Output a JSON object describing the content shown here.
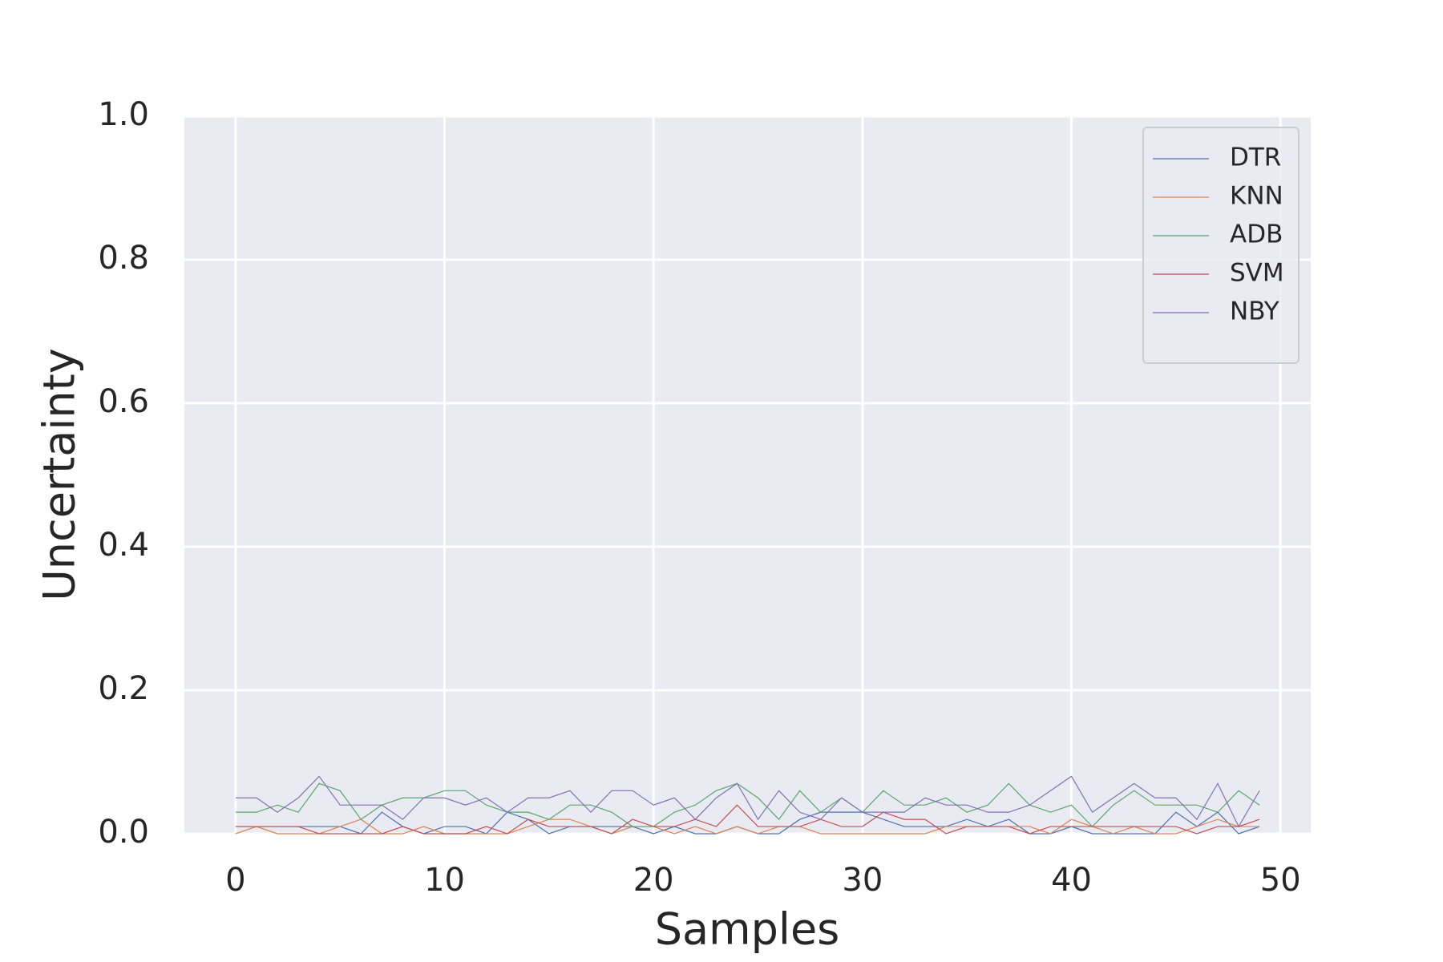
{
  "chart_data": {
    "type": "line",
    "xlabel": "Samples",
    "ylabel": "Uncertainty",
    "x": [
      0,
      1,
      2,
      3,
      4,
      5,
      6,
      7,
      8,
      9,
      10,
      11,
      12,
      13,
      14,
      15,
      16,
      17,
      18,
      19,
      20,
      21,
      22,
      23,
      24,
      25,
      26,
      27,
      28,
      29,
      30,
      31,
      32,
      33,
      34,
      35,
      36,
      37,
      38,
      39,
      40,
      41,
      42,
      43,
      44,
      45,
      46,
      47,
      48,
      49
    ],
    "series": [
      {
        "name": "DTR",
        "color": "#4c72b0",
        "values": [
          0.01,
          0.01,
          0.01,
          0.01,
          0.01,
          0.01,
          0,
          0.03,
          0.01,
          0,
          0.01,
          0.01,
          0,
          0.03,
          0.02,
          0,
          0.01,
          0.01,
          0.01,
          0.01,
          0,
          0.01,
          0,
          0,
          0.01,
          0,
          0,
          0.02,
          0.03,
          0.03,
          0.03,
          0.02,
          0.01,
          0.01,
          0.01,
          0.02,
          0.01,
          0.02,
          0,
          0,
          0.01,
          0,
          0,
          0,
          0,
          0.03,
          0.01,
          0.03,
          0,
          0.01
        ]
      },
      {
        "name": "KNN",
        "color": "#dd8452",
        "values": [
          0,
          0.01,
          0,
          0,
          0,
          0.01,
          0.02,
          0,
          0,
          0.01,
          0,
          0,
          0,
          0,
          0.01,
          0.02,
          0.02,
          0.01,
          0,
          0.01,
          0.01,
          0,
          0.01,
          0,
          0.01,
          0,
          0.01,
          0.01,
          0,
          0,
          0,
          0,
          0,
          0,
          0.01,
          0.01,
          0.01,
          0.01,
          0.01,
          0,
          0.02,
          0.01,
          0,
          0.01,
          0,
          0,
          0.01,
          0.02,
          0.01,
          0.01
        ]
      },
      {
        "name": "ADB",
        "color": "#55a868",
        "values": [
          0.03,
          0.03,
          0.04,
          0.03,
          0.07,
          0.06,
          0.02,
          0.04,
          0.05,
          0.05,
          0.06,
          0.06,
          0.04,
          0.03,
          0.03,
          0.02,
          0.04,
          0.04,
          0.03,
          0.01,
          0.01,
          0.03,
          0.04,
          0.06,
          0.07,
          0.05,
          0.02,
          0.06,
          0.03,
          0.05,
          0.03,
          0.06,
          0.04,
          0.04,
          0.05,
          0.03,
          0.04,
          0.07,
          0.04,
          0.03,
          0.04,
          0.01,
          0.04,
          0.06,
          0.04,
          0.04,
          0.04,
          0.03,
          0.06,
          0.04
        ]
      },
      {
        "name": "SVM",
        "color": "#c44e52",
        "values": [
          0.01,
          0.01,
          0.01,
          0.01,
          0,
          0,
          0,
          0,
          0.01,
          0,
          0,
          0,
          0.01,
          0,
          0.02,
          0.01,
          0.01,
          0.01,
          0,
          0.02,
          0.01,
          0.01,
          0.02,
          0.01,
          0.04,
          0.01,
          0.01,
          0.01,
          0.02,
          0.01,
          0.01,
          0.03,
          0.02,
          0.02,
          0,
          0.01,
          0.01,
          0.01,
          0,
          0.01,
          0.01,
          0.01,
          0.01,
          0.01,
          0.01,
          0.01,
          0,
          0.01,
          0.01,
          0.02
        ]
      },
      {
        "name": "NBY",
        "color": "#8172b3",
        "values": [
          0.05,
          0.05,
          0.03,
          0.05,
          0.08,
          0.04,
          0.04,
          0.04,
          0.02,
          0.05,
          0.05,
          0.04,
          0.05,
          0.03,
          0.05,
          0.05,
          0.06,
          0.03,
          0.06,
          0.06,
          0.04,
          0.05,
          0.02,
          0.05,
          0.07,
          0.02,
          0.06,
          0.03,
          0.02,
          0.05,
          0.03,
          0.03,
          0.03,
          0.05,
          0.04,
          0.04,
          0.03,
          0.03,
          0.04,
          0.06,
          0.08,
          0.03,
          0.05,
          0.07,
          0.05,
          0.05,
          0.02,
          0.07,
          0.01,
          0.06
        ]
      }
    ],
    "xlim": [
      -2.45,
      51.45
    ],
    "ylim": [
      0,
      1
    ],
    "xticks": [
      0,
      10,
      20,
      30,
      40,
      50
    ],
    "yticks": [
      {
        "value": 0,
        "label": "0.0"
      },
      {
        "value": 0.2,
        "label": "0.2"
      },
      {
        "value": 0.4,
        "label": "0.4"
      },
      {
        "value": 0.6,
        "label": "0.6"
      },
      {
        "value": 0.8,
        "label": "0.8"
      },
      {
        "value": 1,
        "label": "1.0"
      }
    ],
    "grid": true,
    "legend": "upper right"
  }
}
